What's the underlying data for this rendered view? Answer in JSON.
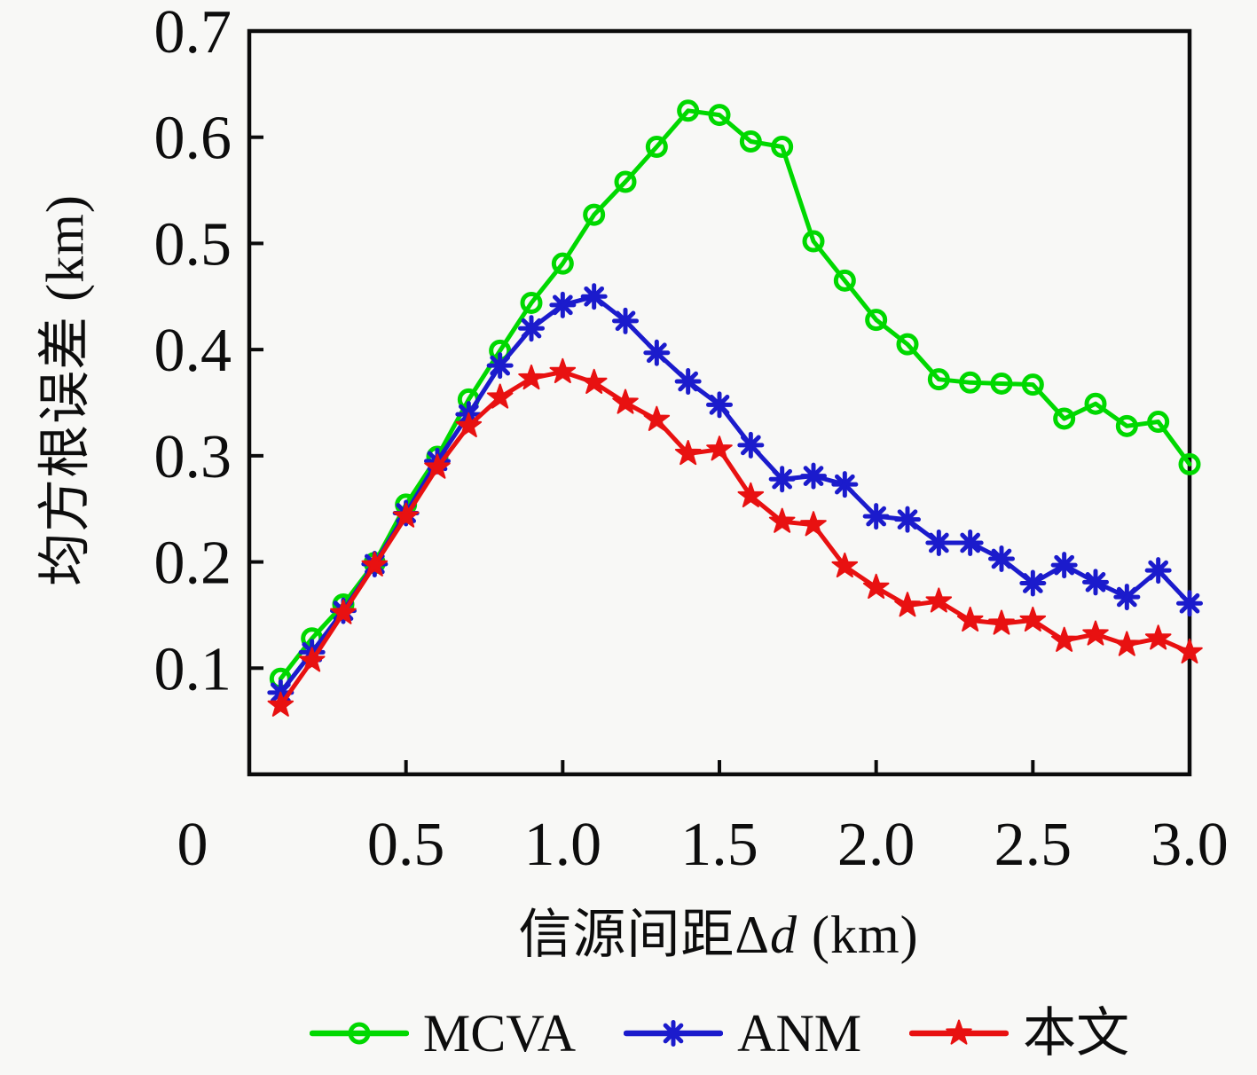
{
  "figure": {
    "background": "#f8f8f6",
    "axis_color": "#0b0b0b"
  },
  "chart_data": {
    "type": "line",
    "title": "",
    "xlabel": "信源间距Δd (km)",
    "xlabel_parts": {
      "prefix": "信源间距Δ",
      "italic": "d",
      "suffix": " (km)"
    },
    "ylabel": "均方根误差 (km)",
    "xlim": [
      0,
      3.0
    ],
    "ylim": [
      0,
      0.7
    ],
    "grid": false,
    "legend_position": "bottom",
    "x_tick_labels": [
      "0",
      "0.5",
      "1.0",
      "1.5",
      "2.0",
      "2.5",
      "3.0"
    ],
    "x_tick_values": [
      0,
      0.5,
      1.0,
      1.5,
      2.0,
      2.5,
      3.0
    ],
    "x_tick_marks": [
      0.5,
      1.0,
      1.5,
      2.0,
      2.5
    ],
    "y_tick_labels": [
      "0.1",
      "0.2",
      "0.3",
      "0.4",
      "0.5",
      "0.6",
      "0.7"
    ],
    "y_tick_values": [
      0.1,
      0.2,
      0.3,
      0.4,
      0.5,
      0.6,
      0.7
    ],
    "y_tick_marks": [
      0.1,
      0.2,
      0.3,
      0.4,
      0.5,
      0.6
    ],
    "x": [
      0.1,
      0.2,
      0.3,
      0.4,
      0.5,
      0.6,
      0.7,
      0.8,
      0.9,
      1.0,
      1.1,
      1.2,
      1.3,
      1.4,
      1.5,
      1.6,
      1.7,
      1.8,
      1.9,
      2.0,
      2.1,
      2.2,
      2.3,
      2.4,
      2.5,
      2.6,
      2.7,
      2.8,
      2.9,
      3.0
    ],
    "series": [
      {
        "name": "MCVA",
        "color": "#00d800",
        "marker": "circle",
        "values": [
          0.09,
          0.128,
          0.16,
          0.199,
          0.254,
          0.299,
          0.353,
          0.399,
          0.444,
          0.481,
          0.527,
          0.558,
          0.591,
          0.625,
          0.621,
          0.596,
          0.591,
          0.502,
          0.465,
          0.428,
          0.405,
          0.372,
          0.369,
          0.368,
          0.367,
          0.335,
          0.349,
          0.328,
          0.332,
          0.292
        ]
      },
      {
        "name": "ANM",
        "color": "#1b1bcc",
        "marker": "asterisk",
        "values": [
          0.077,
          0.115,
          0.154,
          0.198,
          0.246,
          0.295,
          0.339,
          0.385,
          0.42,
          0.442,
          0.45,
          0.427,
          0.397,
          0.37,
          0.348,
          0.31,
          0.278,
          0.281,
          0.273,
          0.243,
          0.24,
          0.218,
          0.218,
          0.203,
          0.18,
          0.197,
          0.181,
          0.167,
          0.192,
          0.161
        ]
      },
      {
        "name": "本文",
        "color": "#e81111",
        "marker": "star",
        "values": [
          0.065,
          0.107,
          0.152,
          0.197,
          0.243,
          0.289,
          0.328,
          0.355,
          0.373,
          0.379,
          0.369,
          0.35,
          0.334,
          0.302,
          0.306,
          0.262,
          0.238,
          0.235,
          0.196,
          0.176,
          0.159,
          0.163,
          0.145,
          0.142,
          0.145,
          0.126,
          0.132,
          0.122,
          0.128,
          0.115
        ]
      }
    ]
  }
}
